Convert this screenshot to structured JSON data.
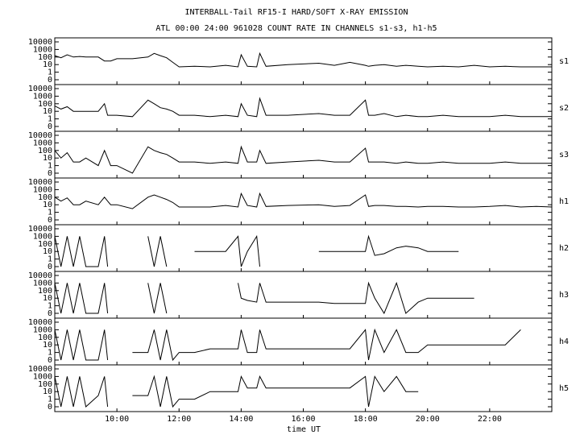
{
  "chart_data": {
    "type": "line",
    "title": "INTERBALL-Tail RF15-I HARD/SOFT X-RAY EMISSION",
    "subtitle": "ATL 00:00 24:00 961028  COUNT RATE IN CHANNELS s1-s3, h1-h5",
    "x_label": "time UT",
    "yscale": "symlog",
    "color": "#000000",
    "xlim": [
      8,
      24
    ],
    "xticks": [
      {
        "value": 10,
        "label": "10:00"
      },
      {
        "value": 12,
        "label": "12:00"
      },
      {
        "value": 14,
        "label": "14:00"
      },
      {
        "value": 16,
        "label": "16:00"
      },
      {
        "value": 18,
        "label": "18:00"
      },
      {
        "value": 20,
        "label": "20:00"
      },
      {
        "value": 22,
        "label": "22:00"
      }
    ],
    "ylim": [
      0,
      10000
    ],
    "yticks": [
      0,
      1,
      10,
      100,
      1000,
      10000
    ],
    "x": [
      8.0,
      8.2,
      8.4,
      8.6,
      8.8,
      9.0,
      9.4,
      9.6,
      9.7,
      9.8,
      10.0,
      10.5,
      11.0,
      11.2,
      11.4,
      11.6,
      11.8,
      12.0,
      12.5,
      13.0,
      13.5,
      13.9,
      14.0,
      14.2,
      14.5,
      14.6,
      14.8,
      15.5,
      16.5,
      17.0,
      17.5,
      18.0,
      18.1,
      18.3,
      18.6,
      19.0,
      19.3,
      19.7,
      20.0,
      20.5,
      21.0,
      21.5,
      22.0,
      22.5,
      23.0,
      23.5,
      24.0
    ],
    "series": [
      {
        "name": "s1",
        "values": [
          150,
          80,
          200,
          100,
          120,
          100,
          100,
          30,
          30,
          30,
          60,
          60,
          100,
          300,
          150,
          80,
          20,
          5,
          6,
          5,
          8,
          5,
          200,
          6,
          5,
          300,
          6,
          10,
          15,
          8,
          20,
          8,
          6,
          8,
          10,
          6,
          8,
          6,
          5,
          6,
          5,
          8,
          5,
          6,
          5,
          5,
          5
        ]
      },
      {
        "name": "s2",
        "values": [
          50,
          20,
          40,
          10,
          10,
          10,
          10,
          100,
          3,
          3,
          3,
          2,
          300,
          100,
          30,
          20,
          10,
          3,
          3,
          2,
          3,
          2,
          100,
          3,
          2,
          500,
          3,
          3,
          5,
          3,
          3,
          300,
          3,
          3,
          5,
          2,
          3,
          2,
          2,
          3,
          2,
          2,
          2,
          3,
          2,
          2,
          2
        ]
      },
      {
        "name": "s3",
        "values": [
          100,
          10,
          50,
          3,
          3,
          10,
          1,
          100,
          10,
          1,
          1,
          0,
          300,
          100,
          50,
          30,
          10,
          3,
          3,
          2,
          3,
          2,
          300,
          3,
          3,
          100,
          2,
          3,
          5,
          3,
          3,
          200,
          3,
          3,
          3,
          2,
          3,
          2,
          2,
          3,
          2,
          2,
          2,
          3,
          2,
          2,
          2
        ]
      },
      {
        "name": "h1",
        "values": [
          100,
          30,
          80,
          10,
          10,
          30,
          10,
          100,
          30,
          10,
          10,
          3,
          100,
          200,
          100,
          50,
          20,
          5,
          5,
          5,
          8,
          5,
          300,
          8,
          5,
          300,
          6,
          8,
          10,
          6,
          8,
          200,
          6,
          8,
          8,
          6,
          6,
          5,
          6,
          6,
          5,
          5,
          6,
          8,
          5,
          6,
          5
        ]
      },
      {
        "name": "h2",
        "values": [
          1000,
          0,
          1000,
          0,
          1000,
          0,
          0,
          1000,
          0,
          null,
          null,
          null,
          1000,
          0,
          1000,
          0,
          null,
          null,
          10,
          10,
          10,
          1000,
          0,
          10,
          1000,
          0,
          null,
          null,
          10,
          10,
          10,
          10,
          1000,
          3,
          5,
          30,
          50,
          30,
          10,
          10,
          10,
          null,
          null,
          null,
          null,
          null,
          null
        ]
      },
      {
        "name": "h3",
        "values": [
          1000,
          0,
          1000,
          0,
          1000,
          0,
          0,
          1000,
          0,
          null,
          null,
          null,
          1000,
          0,
          1000,
          0,
          null,
          null,
          null,
          null,
          null,
          1000,
          10,
          5,
          3,
          1000,
          3,
          3,
          3,
          2,
          2,
          2,
          1000,
          10,
          0,
          1000,
          0,
          3,
          10,
          10,
          10,
          10,
          null,
          null,
          null,
          null,
          null
        ]
      },
      {
        "name": "h4",
        "values": [
          1000,
          0,
          1000,
          0,
          1000,
          0,
          0,
          1000,
          0,
          null,
          null,
          1,
          1,
          1000,
          0,
          1000,
          0,
          1,
          1,
          3,
          3,
          3,
          1000,
          1,
          1,
          1000,
          3,
          3,
          3,
          3,
          3,
          1000,
          0,
          1000,
          1,
          1000,
          1,
          1,
          10,
          10,
          10,
          10,
          10,
          10,
          1000,
          null,
          null
        ]
      },
      {
        "name": "h5",
        "values": [
          1000,
          0,
          1000,
          0,
          1000,
          0,
          3,
          1000,
          0,
          null,
          null,
          3,
          3,
          1000,
          0,
          1000,
          0,
          1,
          1,
          10,
          10,
          10,
          1000,
          30,
          30,
          1000,
          30,
          30,
          30,
          30,
          30,
          1000,
          0,
          1000,
          10,
          1000,
          10,
          10,
          null,
          null,
          null,
          null,
          null,
          null,
          null,
          null,
          null
        ]
      }
    ]
  }
}
